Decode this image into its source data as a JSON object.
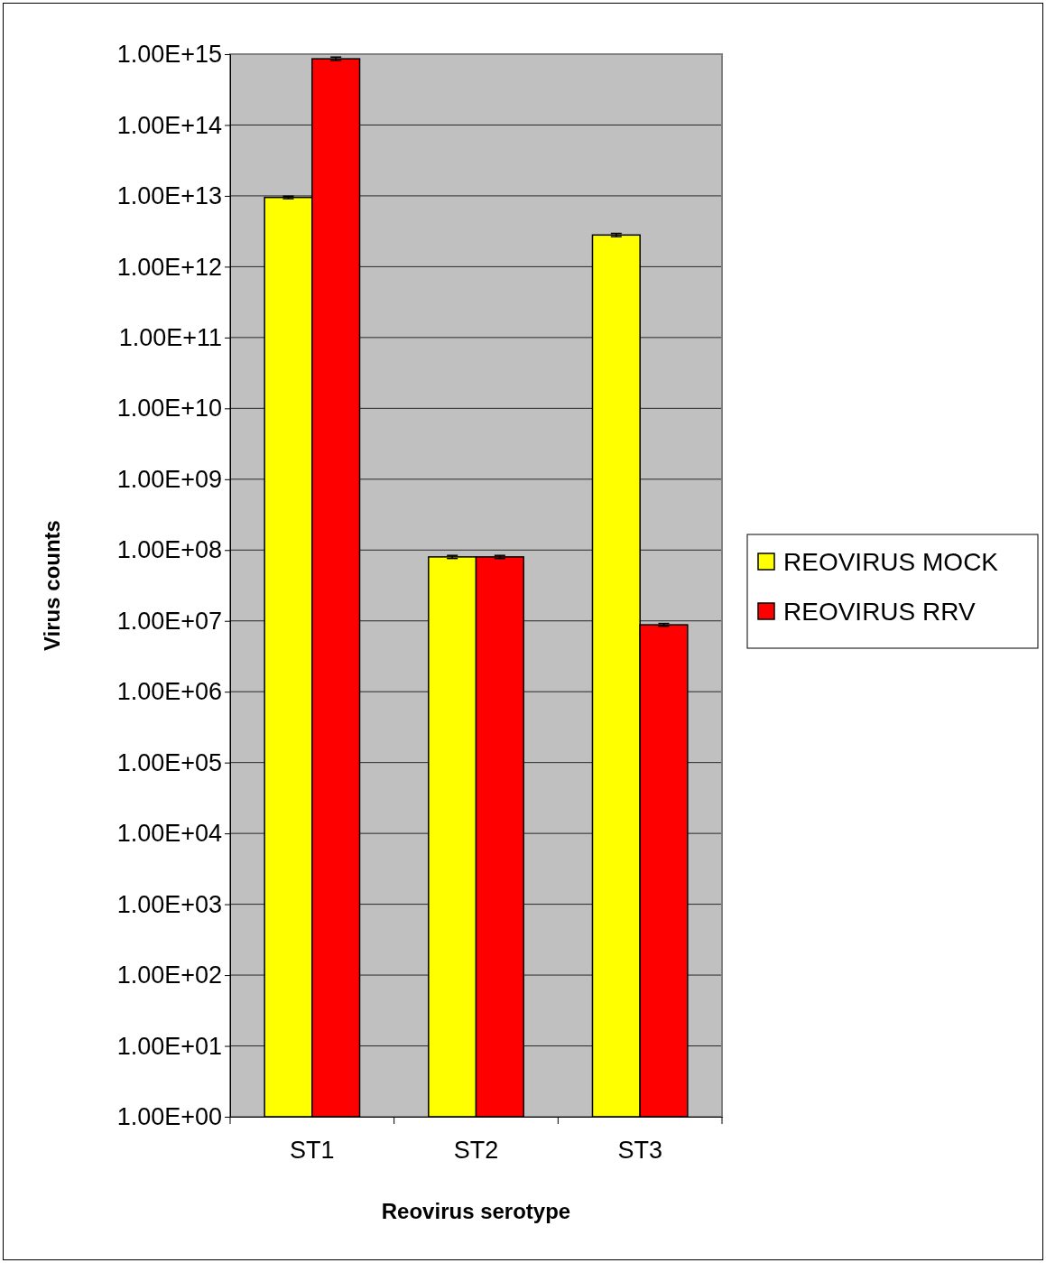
{
  "chart_data": {
    "type": "bar",
    "xlabel": "Reovirus serotype",
    "ylabel": "Virus counts",
    "categories": [
      "ST1",
      "ST2",
      "ST3"
    ],
    "series": [
      {
        "name": "REOVIRUS MOCK",
        "color": "#ffff00",
        "values": [
          9500000000000.0,
          80000000.0,
          2800000000000.0
        ],
        "errors": [
          400000000000.0,
          4000000.0,
          150000000000.0
        ]
      },
      {
        "name": "REOVIRUS RRV",
        "color": "#ff0000",
        "values": [
          860000000000000.0,
          80000000.0,
          8800000.0
        ],
        "errors": [
          50000000000000.0,
          4000000.0,
          400000.0
        ]
      }
    ],
    "log": true,
    "grid": "y",
    "legend": "right",
    "ylim": [
      1,
      1000000000000000.0
    ],
    "yticks": [
      {
        "value": 1,
        "label": "1.00E+00"
      },
      {
        "value": 10,
        "label": "1.00E+01"
      },
      {
        "value": 100,
        "label": "1.00E+02"
      },
      {
        "value": 1000,
        "label": "1.00E+03"
      },
      {
        "value": 10000.0,
        "label": "1.00E+04"
      },
      {
        "value": 100000.0,
        "label": "1.00E+05"
      },
      {
        "value": 1000000.0,
        "label": "1.00E+06"
      },
      {
        "value": 10000000.0,
        "label": "1.00E+07"
      },
      {
        "value": 100000000.0,
        "label": "1.00E+08"
      },
      {
        "value": 1000000000.0,
        "label": "1.00E+09"
      },
      {
        "value": 10000000000.0,
        "label": "1.00E+10"
      },
      {
        "value": 100000000000.0,
        "label": "1.00E+11"
      },
      {
        "value": 1000000000000.0,
        "label": "1.00E+12"
      },
      {
        "value": 10000000000000.0,
        "label": "1.00E+13"
      },
      {
        "value": 100000000000000.0,
        "label": "1.00E+14"
      },
      {
        "value": 1000000000000000.0,
        "label": "1.00E+15"
      }
    ]
  }
}
